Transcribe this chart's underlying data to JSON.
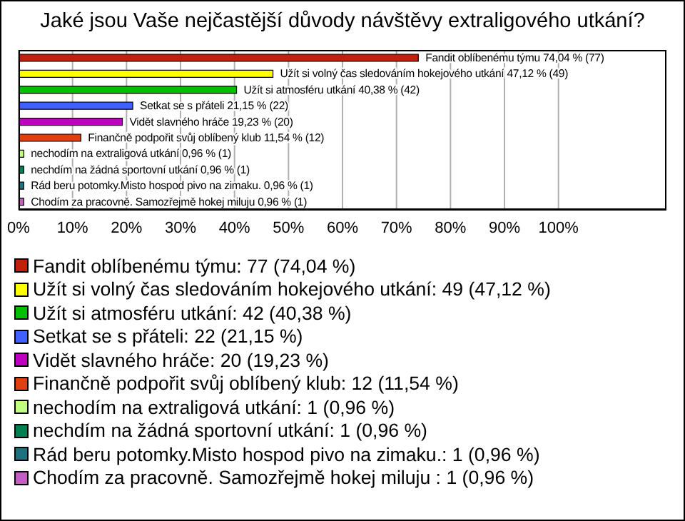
{
  "chart_data": {
    "type": "bar",
    "orientation": "horizontal",
    "title": "Jaké jsou Vaše nejčastější důvody návštěvy extraligového utkání?",
    "categories": [
      "Fandit oblíbenému týmu",
      "Užít si volný čas sledováním hokejového utkání",
      "Užít si atmosféru utkání",
      "Setkat se s přáteli",
      "Vidět slavného hráče",
      "Finančně podpořit svůj oblíbený klub",
      "nechodím na extraligová utkání",
      "nechdím na žádná sportovní utkání",
      "Rád beru potomky.Misto hospod pivo na zimaku.",
      "Chodím za pracovně. Samozřejmě hokej miluju"
    ],
    "values": [
      74.04,
      47.12,
      40.38,
      21.15,
      19.23,
      11.54,
      0.96,
      0.96,
      0.96,
      0.96
    ],
    "value_labels": [
      "74,04 % (77)",
      "47,12 % (49)",
      "40,38 % (42)",
      "21,15 % (22)",
      "19,23 % (20)",
      "11,54 % (12)",
      "0,96 % (1)",
      "0,96 % (1)",
      "0,96 % (1)",
      "0,96 % (1)"
    ],
    "colors": [
      "#c0200c",
      "#ffff00",
      "#00c000",
      "#4060ff",
      "#c000c0",
      "#e04010",
      "#c0ff80",
      "#008050",
      "#207080",
      "#c060c0"
    ],
    "xlim": [
      0,
      120
    ],
    "xticks": [
      {
        "value": 0,
        "label": "0%"
      },
      {
        "value": 10,
        "label": "10%"
      },
      {
        "value": 20,
        "label": "20%"
      },
      {
        "value": 30,
        "label": "30%"
      },
      {
        "value": 40,
        "label": "40%"
      },
      {
        "value": 50,
        "label": "50%"
      },
      {
        "value": 60,
        "label": "60%"
      },
      {
        "value": 70,
        "label": "70%"
      },
      {
        "value": 80,
        "label": "80%"
      },
      {
        "value": 90,
        "label": "90%"
      },
      {
        "value": 100,
        "label": "100%"
      }
    ],
    "grid": "x",
    "annotations": [
      "Fandit oblíbenému týmu: 77 (74,04 %)",
      "Užít si volný čas sledováním hokejového utkání: 49 (47,12 %)",
      "Užít si atmosféru utkání: 42 (40,38 %)",
      "Setkat se s přáteli: 22 (21,15 %)",
      "Vidět slavného hráče: 20 (19,23 %)",
      "Finančně podpořit svůj oblíbený klub: 12 (11,54 %)",
      "nechodím na extraligová utkání: 1 (0,96 %)",
      "nechdím na žádná sportovní utkání: 1 (0,96 %)",
      "Rád beru potomky.Misto hospod pivo na zimaku.: 1 (0,96 %)",
      "Chodím za pracovně. Samozřejmě hokej miluju : 1 (0,96 %)"
    ]
  }
}
